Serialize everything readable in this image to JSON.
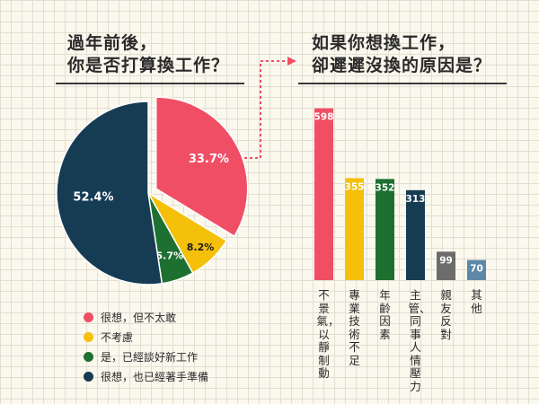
{
  "left_title": [
    "過年前後，",
    "你是否打算換工作？"
  ],
  "right_title": [
    "如果你想換工作，",
    "卻遲遲沒換的原因是？"
  ],
  "colors": {
    "pink": "#f04e65",
    "yellow": "#f5c00a",
    "green": "#1d7030",
    "navy": "#163c54",
    "gray": "#6c6c6c",
    "blue": "#5d88a8",
    "connector": "#f04e65"
  },
  "chart_data": [
    {
      "type": "pie",
      "title": "過年前後，你是否打算換工作？",
      "slices": [
        {
          "label": "很想，但不太敢",
          "value": 33.7,
          "value_label": "33.7%",
          "color": "#f04e65"
        },
        {
          "label": "不考慮",
          "value": 8.2,
          "value_label": "8.2%",
          "color": "#f5c00a"
        },
        {
          "label": "是，已經談好新工作",
          "value": 5.7,
          "value_label": "5.7%",
          "color": "#1d7030"
        },
        {
          "label": "很想，也已經著手準備",
          "value": 52.4,
          "value_label": "52.4%",
          "color": "#163c54"
        }
      ],
      "legend_position": "bottom-left"
    },
    {
      "type": "bar",
      "title": "如果你想換工作，卻遲遲沒換的原因是？",
      "categories": [
        "不景氣，以靜制動",
        "專業技術不足",
        "年齡因素",
        "主管、同事人情壓力",
        "親友反對",
        "其他"
      ],
      "values": [
        598,
        355,
        352,
        313,
        99,
        70
      ],
      "colors": [
        "#f04e65",
        "#f5c00a",
        "#1d7030",
        "#163c54",
        "#6c6c6c",
        "#5d88a8"
      ],
      "ylim": [
        0,
        600
      ]
    }
  ]
}
